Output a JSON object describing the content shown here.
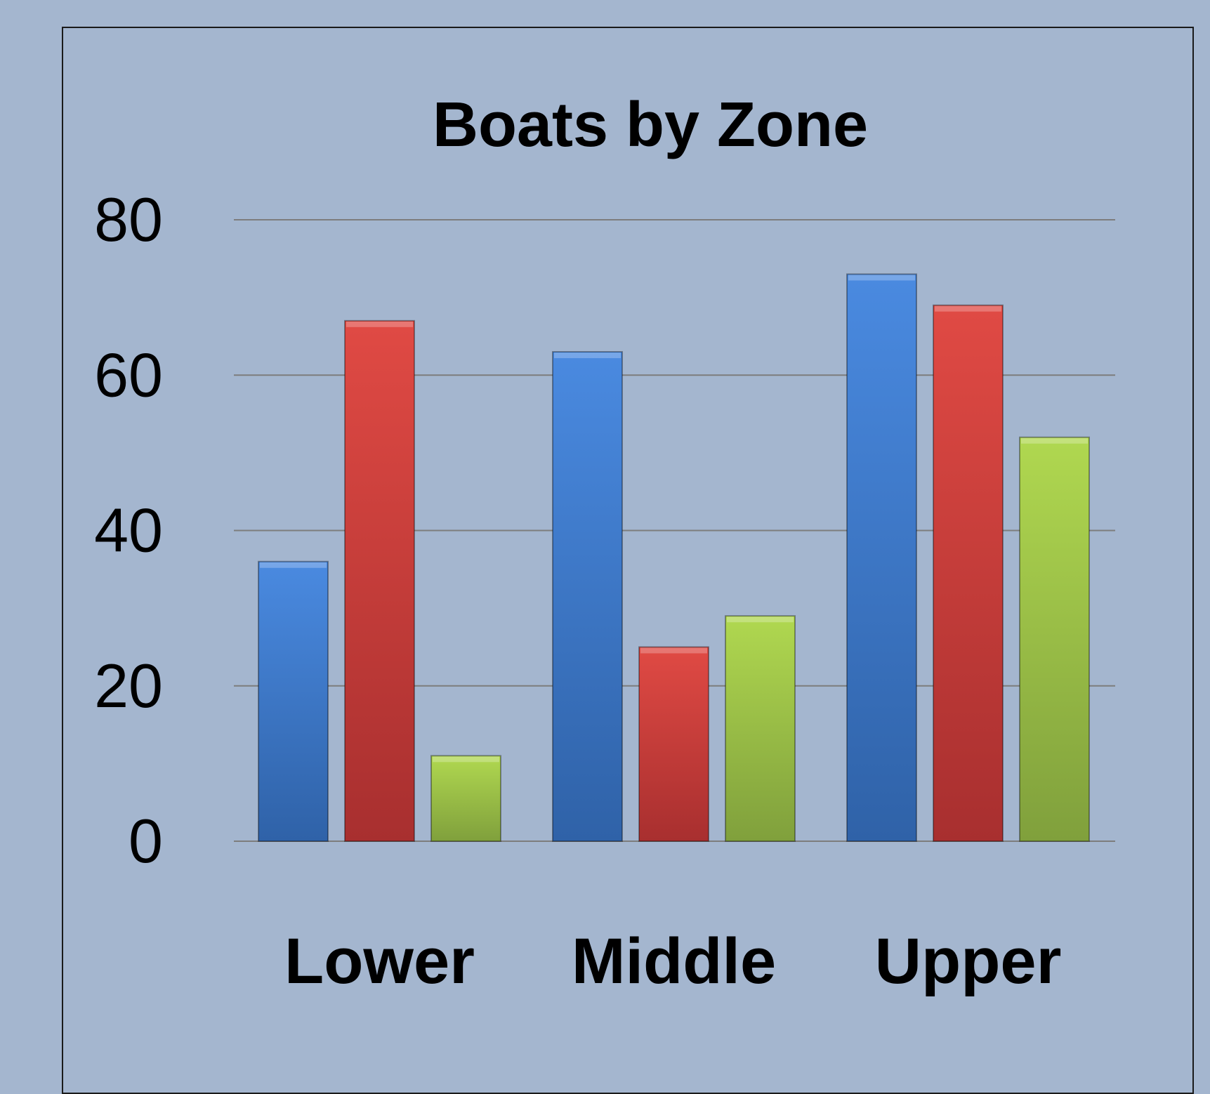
{
  "chart_data": {
    "type": "bar",
    "title": "Boats by Zone",
    "xlabel": "",
    "ylabel": "",
    "categories": [
      "Lower",
      "Middle",
      "Upper"
    ],
    "series": [
      {
        "values": [
          36,
          63,
          73
        ],
        "color": "#3c7dd4"
      },
      {
        "values": [
          67,
          25,
          69
        ],
        "color": "#d43c3c"
      },
      {
        "values": [
          11,
          29,
          52
        ],
        "color": "#a3cc4a"
      }
    ],
    "ylim": [
      0,
      80
    ],
    "yticks": [
      "0",
      "20",
      "40",
      "60",
      "80"
    ],
    "grid": true,
    "legend": "none"
  }
}
